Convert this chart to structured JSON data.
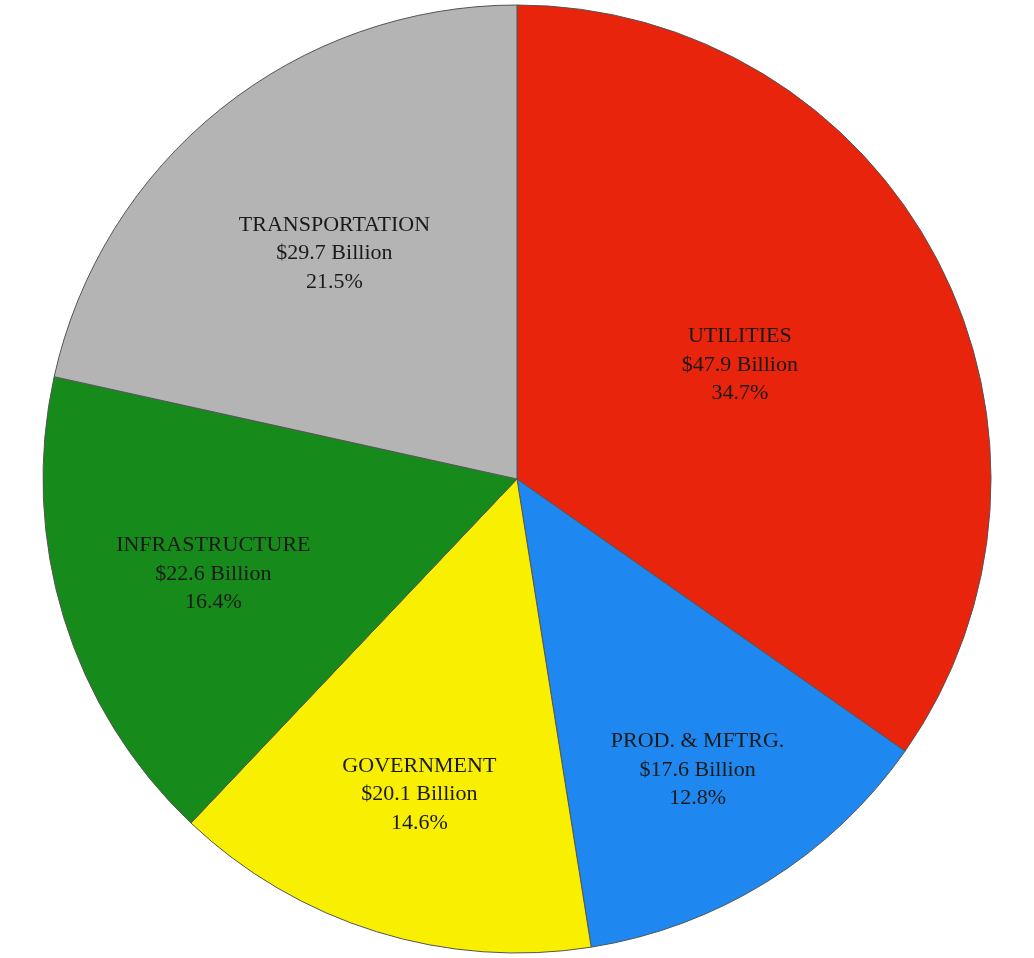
{
  "chart_data": {
    "type": "pie",
    "categories": [
      "UTILITIES",
      "PROD. & MFTRG.",
      "GOVERNMENT",
      "INFRASTRUCTURE",
      "TRANSPORTATION"
    ],
    "values": [
      47.9,
      17.6,
      20.1,
      22.6,
      29.7
    ],
    "value_labels": [
      "$47.9 Billion\n34.7%",
      "$17.6 Billion\n12.8%",
      "$20.1 Billion\n14.6%",
      "$22.6 Billion\n16.4%",
      "$29.7 Billion\n21.5%"
    ],
    "colors": [
      "#e8240c",
      "#1e88f0",
      "#f8f000",
      "#178a1c",
      "#b4b4b4"
    ],
    "legend": false
  }
}
